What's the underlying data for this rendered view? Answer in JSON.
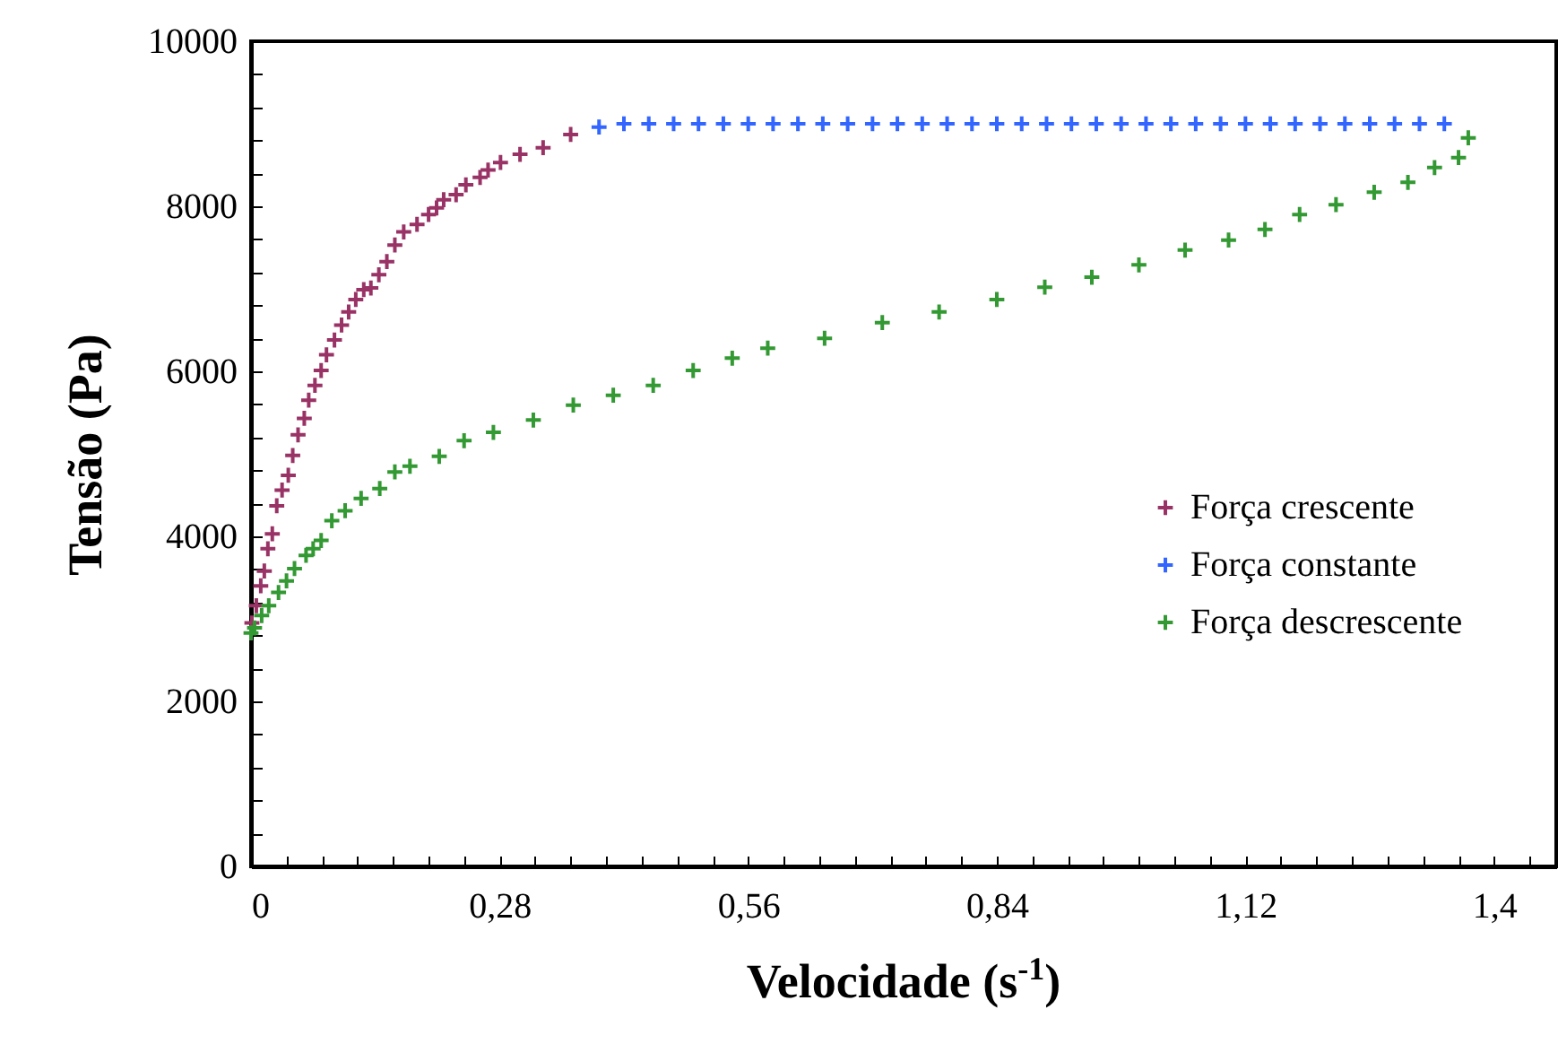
{
  "chart_data": {
    "type": "scatter",
    "xlabel": "Velocidade (s$^{-1}$)",
    "ylabel": "Tensão (Pa)",
    "marker": "cross",
    "grid": false,
    "legend": "right",
    "xlim": [
      0,
      1.47
    ],
    "ylim": [
      0,
      10000
    ],
    "xticks": [
      {
        "value": 0,
        "label": "0"
      },
      {
        "value": 0.04,
        "label": null
      },
      {
        "value": 0.08,
        "label": null
      },
      {
        "value": 0.12,
        "label": null
      },
      {
        "value": 0.16,
        "label": null
      },
      {
        "value": 0.2,
        "label": null
      },
      {
        "value": 0.24,
        "label": null
      },
      {
        "value": 0.28,
        "label": "0,28"
      },
      {
        "value": 0.32,
        "label": null
      },
      {
        "value": 0.36,
        "label": null
      },
      {
        "value": 0.4,
        "label": null
      },
      {
        "value": 0.44,
        "label": null
      },
      {
        "value": 0.48,
        "label": null
      },
      {
        "value": 0.52,
        "label": null
      },
      {
        "value": 0.56,
        "label": "0,56"
      },
      {
        "value": 0.6,
        "label": null
      },
      {
        "value": 0.64,
        "label": null
      },
      {
        "value": 0.68,
        "label": null
      },
      {
        "value": 0.72,
        "label": null
      },
      {
        "value": 0.76,
        "label": null
      },
      {
        "value": 0.8,
        "label": null
      },
      {
        "value": 0.84,
        "label": "0,84"
      },
      {
        "value": 0.88,
        "label": null
      },
      {
        "value": 0.92,
        "label": null
      },
      {
        "value": 0.96,
        "label": null
      },
      {
        "value": 1.0,
        "label": null
      },
      {
        "value": 1.04,
        "label": null
      },
      {
        "value": 1.08,
        "label": null
      },
      {
        "value": 1.12,
        "label": "1,12"
      },
      {
        "value": 1.16,
        "label": null
      },
      {
        "value": 1.2,
        "label": null
      },
      {
        "value": 1.24,
        "label": null
      },
      {
        "value": 1.28,
        "label": null
      },
      {
        "value": 1.32,
        "label": null
      },
      {
        "value": 1.36,
        "label": null
      },
      {
        "value": 1.4,
        "label": "1,4"
      },
      {
        "value": 1.44,
        "label": null
      }
    ],
    "yticks": [
      0,
      {
        "value": 400,
        "label": null
      },
      {
        "value": 800,
        "label": null
      },
      {
        "value": 1200,
        "label": null
      },
      {
        "value": 1600,
        "label": null
      },
      2000,
      {
        "value": 2400,
        "label": null
      },
      {
        "value": 2800,
        "label": null
      },
      {
        "value": 3200,
        "label": null
      },
      {
        "value": 3600,
        "label": null
      },
      4000,
      {
        "value": 4400,
        "label": null
      },
      {
        "value": 4800,
        "label": null
      },
      {
        "value": 5200,
        "label": null
      },
      {
        "value": 5600,
        "label": null
      },
      6000,
      {
        "value": 6400,
        "label": null
      },
      {
        "value": 6800,
        "label": null
      },
      {
        "value": 7200,
        "label": null
      },
      {
        "value": 7600,
        "label": null
      },
      8000,
      {
        "value": 8400,
        "label": null
      },
      {
        "value": 8800,
        "label": null
      },
      {
        "value": 9200,
        "label": null
      },
      {
        "value": 9600,
        "label": null
      },
      10000
    ],
    "series": [
      {
        "name": "Força crescente",
        "color": "#993366",
        "x": [
          0.001,
          0.006,
          0.011,
          0.015,
          0.019,
          0.024,
          0.029,
          0.035,
          0.042,
          0.047,
          0.053,
          0.06,
          0.065,
          0.072,
          0.079,
          0.085,
          0.094,
          0.102,
          0.11,
          0.118,
          0.127,
          0.135,
          0.144,
          0.153,
          0.162,
          0.172,
          0.187,
          0.2,
          0.209,
          0.217,
          0.231,
          0.242,
          0.258,
          0.267,
          0.281,
          0.303,
          0.329,
          0.36
        ],
        "values": [
          2950,
          3160,
          3400,
          3580,
          3850,
          4030,
          4370,
          4560,
          4740,
          4980,
          5230,
          5430,
          5650,
          5830,
          6010,
          6200,
          6380,
          6560,
          6720,
          6870,
          6990,
          7010,
          7170,
          7330,
          7530,
          7690,
          7780,
          7900,
          7980,
          8080,
          8140,
          8260,
          8350,
          8440,
          8530,
          8630,
          8710,
          8870
        ]
      },
      {
        "name": "Força constante",
        "color": "#3366ff",
        "x": [
          0.392,
          0.42,
          0.448,
          0.476,
          0.504,
          0.532,
          0.56,
          0.588,
          0.616,
          0.644,
          0.672,
          0.7,
          0.728,
          0.756,
          0.784,
          0.812,
          0.84,
          0.868,
          0.896,
          0.924,
          0.952,
          0.98,
          1.008,
          1.036,
          1.064,
          1.092,
          1.12,
          1.148,
          1.176,
          1.204,
          1.232,
          1.26,
          1.288,
          1.316,
          1.344
        ],
        "values": [
          8960,
          9000,
          9000,
          9000,
          9000,
          9000,
          9000,
          9000,
          9000,
          9000,
          9000,
          9000,
          9000,
          9000,
          9000,
          9000,
          9000,
          9000,
          9000,
          9000,
          9000,
          9000,
          9000,
          9000,
          9000,
          9000,
          9000,
          9000,
          9000,
          9000,
          9000,
          9000,
          9000,
          9000,
          9000
        ]
      },
      {
        "name": "Força descrescente",
        "color": "#339933",
        "x": [
          1.371,
          1.36,
          1.333,
          1.303,
          1.265,
          1.222,
          1.181,
          1.142,
          1.101,
          1.052,
          1.0,
          0.947,
          0.894,
          0.84,
          0.775,
          0.711,
          0.646,
          0.582,
          0.542,
          0.498,
          0.453,
          0.408,
          0.363,
          0.318,
          0.273,
          0.24,
          0.212,
          0.179,
          0.162,
          0.145,
          0.124,
          0.106,
          0.091,
          0.079,
          0.07,
          0.062,
          0.049,
          0.04,
          0.031,
          0.02,
          0.012,
          0.004,
          0.0
        ],
        "values": [
          8830,
          8590,
          8470,
          8290,
          8170,
          8020,
          7900,
          7720,
          7590,
          7470,
          7290,
          7140,
          7020,
          6870,
          6720,
          6590,
          6400,
          6280,
          6160,
          6010,
          5830,
          5710,
          5590,
          5410,
          5260,
          5160,
          4970,
          4850,
          4780,
          4580,
          4460,
          4310,
          4190,
          3950,
          3850,
          3770,
          3610,
          3460,
          3320,
          3160,
          3040,
          2890,
          2830
        ]
      }
    ]
  }
}
